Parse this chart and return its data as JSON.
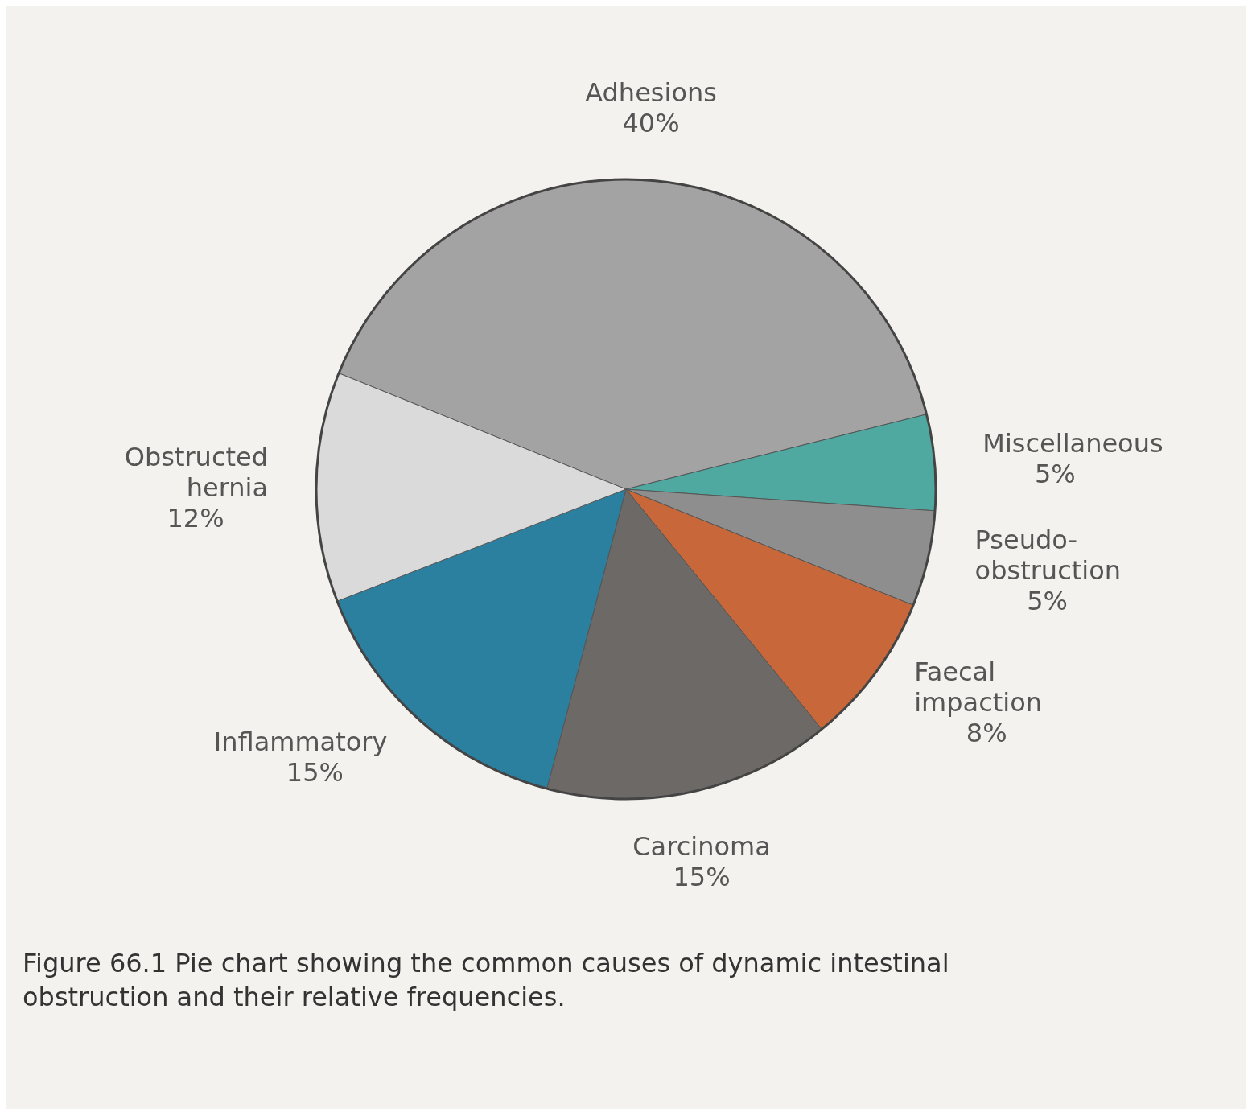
{
  "chart_data": {
    "type": "pie",
    "categories": [
      "Adhesions",
      "Miscellaneous",
      "Pseudo-obstruction",
      "Faecal impaction",
      "Carcinoma",
      "Inflammatory",
      "Obstructed hernia"
    ],
    "values": [
      40,
      5,
      5,
      8,
      15,
      15,
      12
    ],
    "colors": [
      "#a3a3a3",
      "#4fa9a1",
      "#8e8e8e",
      "#c8683a",
      "#6d6966",
      "#2b7f9f",
      "#dadada"
    ],
    "value_labels": [
      "40%",
      "5%",
      "5%",
      "8%",
      "15%",
      "15%",
      "12%"
    ],
    "annotations": [
      "Figure 66.1 Pie chart showing the common causes of dynamic intestinal obstruction and their relative frequencies."
    ]
  }
}
